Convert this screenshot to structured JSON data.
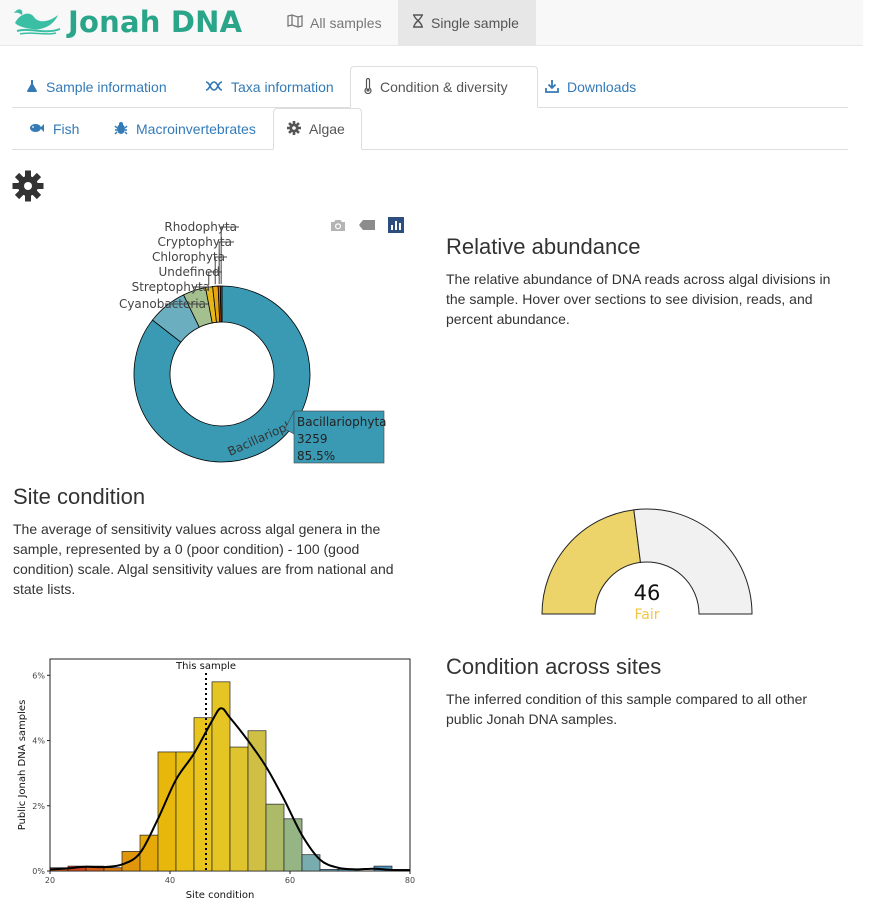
{
  "brand": {
    "name": "Jonah DNA"
  },
  "navbar": {
    "items": [
      {
        "label": "All samples",
        "icon": "map-icon",
        "active": false
      },
      {
        "label": "Single sample",
        "icon": "hourglass-icon",
        "active": true
      }
    ]
  },
  "main_tabs": [
    {
      "label": "Sample information",
      "icon": "flask-icon",
      "active": false
    },
    {
      "label": "Taxa information",
      "icon": "dna-icon",
      "active": false
    },
    {
      "label": "Condition & diversity",
      "icon": "thermometer-icon",
      "active": true
    },
    {
      "label": "Downloads",
      "icon": "download-icon",
      "active": false
    }
  ],
  "sub_tabs": [
    {
      "label": "Fish",
      "icon": "fish-icon",
      "active": false
    },
    {
      "label": "Macroinvertebrates",
      "icon": "bug-icon",
      "active": false
    },
    {
      "label": "Algae",
      "icon": "cog-icon",
      "active": true
    }
  ],
  "sections": {
    "relative_abundance": {
      "title": "Relative abundance",
      "description": "The relative abundance of DNA reads across algal divisions in the sample. Hover over sections to see division, reads, and percent abundance."
    },
    "site_condition": {
      "title": "Site condition",
      "description": "The average of sensitivity values across algal genera in the sample, represented by a 0 (poor condition) - 100 (good condition) scale. Algal sensitivity values are from national and state lists."
    },
    "condition_across_sites": {
      "title": "Condition across sites",
      "description": "The inferred condition of this sample compared to all other public Jonah DNA samples."
    }
  },
  "modebar": {
    "icons": [
      "camera-icon",
      "tag-icon",
      "bar-chart-icon"
    ]
  },
  "chart_data": [
    {
      "type": "pie",
      "hole": true,
      "labels": [
        "Bacillariophyta",
        "Cyanobacteria",
        "Streptophyta",
        "Undefined",
        "Chlorophyta",
        "Cryptophyta",
        "Rhodophyta"
      ],
      "values": [
        85.5,
        7.3,
        4.2,
        1.3,
        1.0,
        0.4,
        0.3
      ],
      "colors": [
        "#3a9ab3",
        "#6aaebf",
        "#a4c08e",
        "#e5b71a",
        "#e6a410",
        "#df6410",
        "#c9381a"
      ],
      "hover": {
        "label": "Bacillariophyta",
        "reads": "3259",
        "percent": "85.5%"
      },
      "slice_label": "Bacillariophyta"
    },
    {
      "type": "gauge",
      "value": 46,
      "range": [
        0,
        100
      ],
      "status": "Fair",
      "fill_color": "#ecd46a",
      "status_color": "#f2c744",
      "track_color": "#f1f1f1"
    },
    {
      "type": "bar",
      "subtype": "histogram",
      "xlabel": "Site  condition",
      "ylabel": "Public Jonah DNA samples",
      "xlim": [
        20,
        80
      ],
      "ylim": [
        0,
        6.5
      ],
      "x_ticks": [
        "20",
        "40",
        "60",
        "80"
      ],
      "y_ticks": [
        "0%",
        "2%",
        "4%",
        "6%"
      ],
      "bin_width": 3,
      "bin_starts": [
        20,
        23,
        26,
        29,
        32,
        35,
        38,
        41,
        44,
        47,
        50,
        53,
        56,
        59,
        62,
        65,
        68,
        71,
        74,
        77
      ],
      "values": [
        0.1,
        0.15,
        0.15,
        0.1,
        0.6,
        1.1,
        3.65,
        3.65,
        4.7,
        5.8,
        3.8,
        4.3,
        2.05,
        1.6,
        0.5,
        0.05,
        0.05,
        0.0,
        0.15,
        0.05
      ],
      "colors": [
        "#d2571b",
        "#d0451e",
        "#d45a18",
        "#d97a10",
        "#e0960a",
        "#e6a90a",
        "#e8b70c",
        "#e8bf12",
        "#e8c41c",
        "#e5c523",
        "#e0c42e",
        "#cfc045",
        "#adba68",
        "#95b684",
        "#78acae",
        "#6ba5bc",
        "#5f9fc0",
        "#5a9cc2",
        "#4f95bf",
        "#488fbd"
      ],
      "density_curve": [
        [
          20,
          0.05
        ],
        [
          23,
          0.08
        ],
        [
          26,
          0.13
        ],
        [
          29,
          0.12
        ],
        [
          32,
          0.2
        ],
        [
          35,
          0.55
        ],
        [
          38,
          1.6
        ],
        [
          41,
          2.8
        ],
        [
          44,
          3.6
        ],
        [
          47,
          4.6
        ],
        [
          48.5,
          4.99
        ],
        [
          50,
          4.7
        ],
        [
          53,
          4.0
        ],
        [
          56,
          3.2
        ],
        [
          59,
          2.2
        ],
        [
          62,
          1.1
        ],
        [
          65,
          0.35
        ],
        [
          68,
          0.1
        ],
        [
          71,
          0.05
        ],
        [
          74,
          0.07
        ],
        [
          77,
          0.03
        ],
        [
          80,
          0.02
        ]
      ],
      "marker_x": 46,
      "marker_label": "This sample"
    }
  ]
}
